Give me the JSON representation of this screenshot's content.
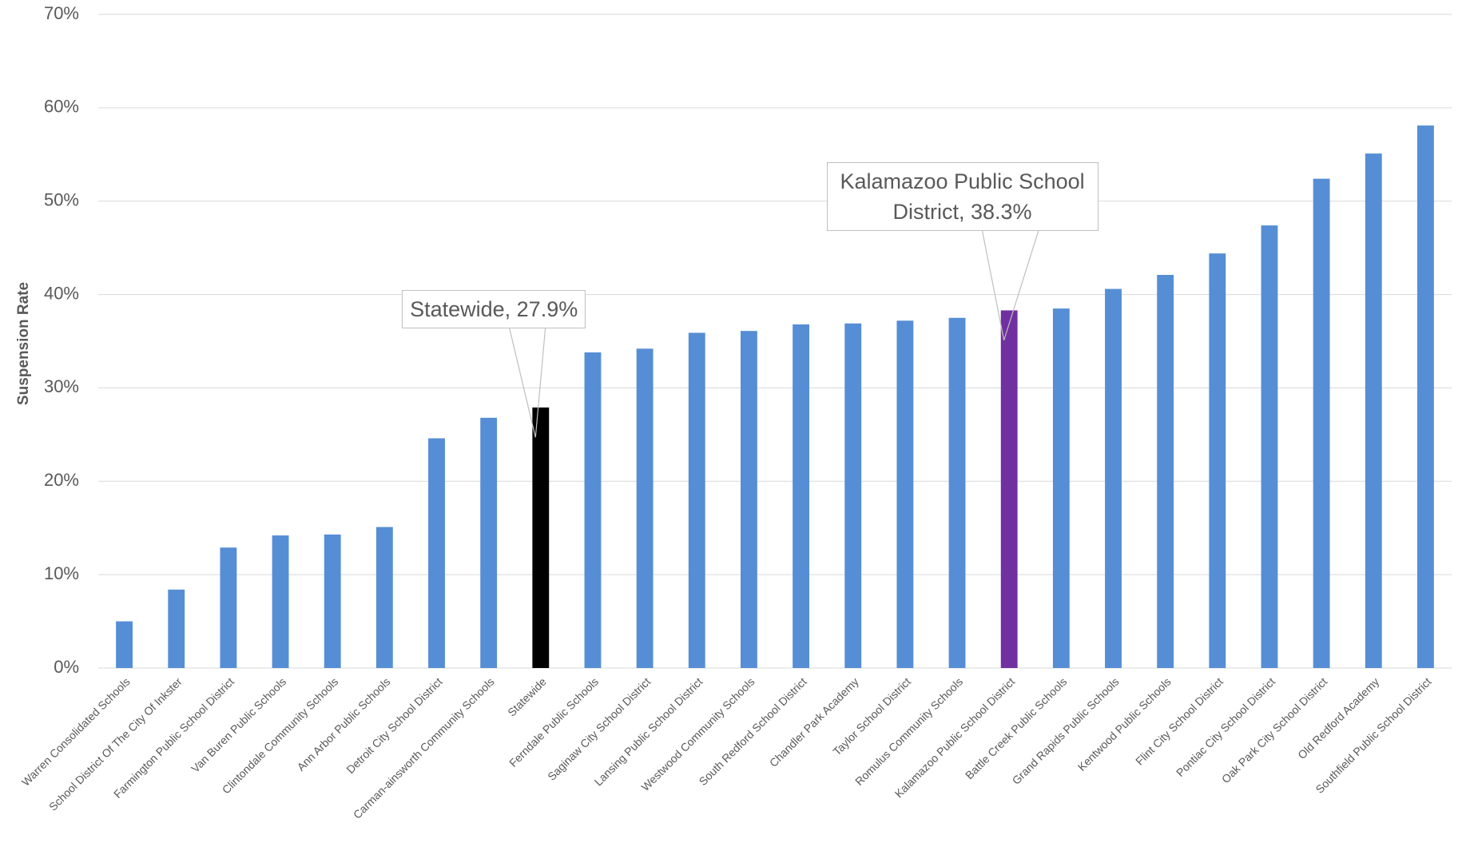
{
  "chart_data": {
    "type": "bar",
    "y_label": "Suspension Rate",
    "categories": [
      "Warren Consolidated Schools",
      "School District Of The City Of Inkster",
      "Farmington Public School District",
      "Van Buren Public Schools",
      "Clintondale Community Schools",
      "Ann Arbor Public Schools",
      "Detroit City School District",
      "Carman-ainsworth Community Schools",
      "Statewide",
      "Ferndale Public Schools",
      "Saginaw City School District",
      "Lansing Public School District",
      "Westwood Community Schools",
      "South Redford School District",
      "Chandler Park Academy",
      "Taylor School District",
      "Romulus Community Schools",
      "Kalamazoo Public School District",
      "Battle Creek Public Schools",
      "Grand Rapids Public Schools",
      "Kentwood Public Schools",
      "Flint City School District",
      "Pontiac City School District",
      "Oak Park City School District",
      "Old Redford Academy",
      "Southfield Public School District"
    ],
    "values": [
      5.0,
      8.4,
      12.9,
      14.2,
      14.3,
      15.1,
      24.6,
      26.8,
      27.9,
      33.8,
      34.2,
      35.9,
      36.1,
      36.8,
      36.9,
      37.2,
      37.5,
      38.3,
      38.5,
      40.6,
      42.1,
      44.4,
      47.4,
      52.4,
      55.1,
      58.1
    ],
    "value_labels": [
      null,
      null,
      null,
      null,
      null,
      null,
      null,
      null,
      "Statewide, 27.9%",
      null,
      null,
      null,
      null,
      null,
      null,
      null,
      null,
      "Kalamazoo Public School District, 38.3%",
      null,
      null,
      null,
      null,
      null,
      null,
      null,
      null
    ],
    "colors": [
      "#558ed5",
      "#558ed5",
      "#558ed5",
      "#558ed5",
      "#558ed5",
      "#558ed5",
      "#558ed5",
      "#558ed5",
      "#000000",
      "#558ed5",
      "#558ed5",
      "#558ed5",
      "#558ed5",
      "#558ed5",
      "#558ed5",
      "#558ed5",
      "#558ed5",
      "#7030a0",
      "#558ed5",
      "#558ed5",
      "#558ed5",
      "#558ed5",
      "#558ed5",
      "#558ed5",
      "#558ed5",
      "#558ed5"
    ],
    "ylim": [
      0,
      70
    ],
    "yticks": [
      {
        "value": 0,
        "label": "0%"
      },
      {
        "value": 10,
        "label": "10%"
      },
      {
        "value": 20,
        "label": "20%"
      },
      {
        "value": 30,
        "label": "30%"
      },
      {
        "value": 40,
        "label": "40%"
      },
      {
        "value": 50,
        "label": "50%"
      },
      {
        "value": 60,
        "label": "60%"
      },
      {
        "value": 70,
        "label": "70%"
      }
    ],
    "grid": true
  }
}
